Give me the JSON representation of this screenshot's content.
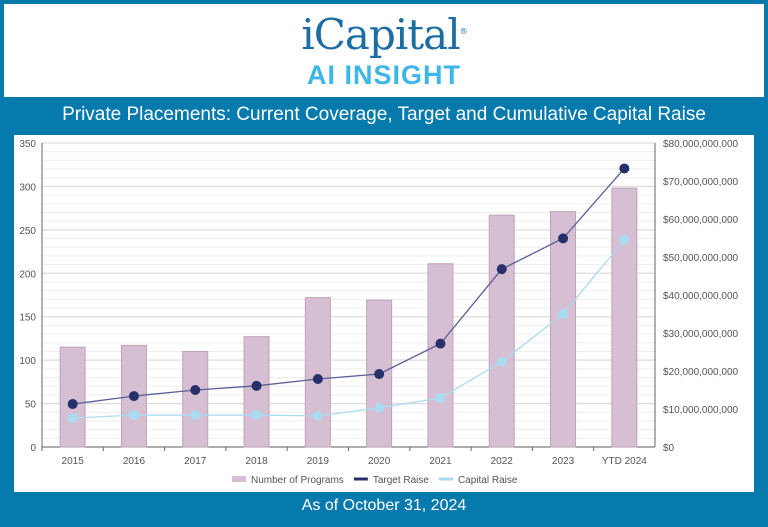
{
  "header": {
    "brand": "iCapital",
    "subtitle": "AI INSIGHT"
  },
  "footer": {
    "date_note": "As of October 31, 2024"
  },
  "chart_data": {
    "type": "bar+line",
    "title": "Private Placements: Current Coverage, Target and Cumulative Capital Raise",
    "categories": [
      "2015",
      "2016",
      "2017",
      "2018",
      "2019",
      "2020",
      "2021",
      "2022",
      "2023",
      "YTD 2024"
    ],
    "left_axis": {
      "ylim": [
        0,
        350
      ],
      "ticks": [
        "0",
        "50",
        "100",
        "150",
        "200",
        "250",
        "300",
        "350"
      ]
    },
    "right_axis": {
      "ylim": [
        0,
        80000000000
      ],
      "ticks": [
        "$0",
        "$10,000,000,000",
        "$20,000,000,000",
        "$30,000,000,000",
        "$40,000,000,000",
        "$50,000,000,000",
        "$60,000,000,000",
        "$70,000,000,000",
        "$80,000,000,000"
      ]
    },
    "series": [
      {
        "name": "Number of Programs",
        "type": "bar",
        "axis": "left",
        "color": "#d6bfd2",
        "values": [
          115,
          117,
          110,
          127,
          172,
          169,
          211,
          267,
          271,
          298
        ]
      },
      {
        "name": "Target Raise",
        "type": "line",
        "axis": "right",
        "color": "#27306a",
        "values": [
          11300000000.0,
          13400000000.0,
          15000000000.0,
          16100000000.0,
          17900000000.0,
          19200000000.0,
          27200000000.0,
          46800000000.0,
          54900000000.0,
          73300000000.0
        ]
      },
      {
        "name": "Capital Raise",
        "type": "line",
        "axis": "right",
        "color": "#a9dcf0",
        "values": [
          7600000000.0,
          8400000000.0,
          8400000000.0,
          8400000000.0,
          8200000000.0,
          10300000000.0,
          12900000000.0,
          22400000000.0,
          35000000000.0,
          54500000000.0
        ]
      }
    ],
    "grid": true,
    "legend": "bottom"
  }
}
